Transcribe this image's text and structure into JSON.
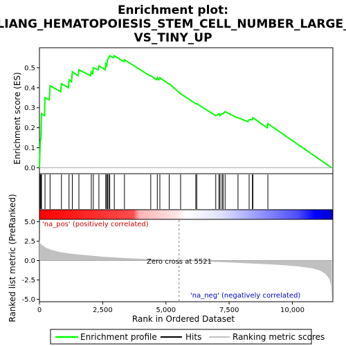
{
  "chart_data": {
    "type": "line",
    "title_line1": "Enrichment plot:",
    "title_line2": "LIANG_HEMATOPOIESIS_STEM_CELL_NUMBER_LARGE_",
    "title_line3": "VS_TINY_UP",
    "es_panel": {
      "ylabel": "Enrichment score (ES)",
      "ylim": [
        -0.03,
        0.6
      ],
      "yticks": [
        0.0,
        0.1,
        0.2,
        0.3,
        0.4,
        0.5
      ],
      "ytick_labels": [
        "0.0",
        "0.1",
        "0.2",
        "0.3",
        "0.4",
        "0.5"
      ],
      "series": [
        {
          "name": "Enrichment profile",
          "color": "#00ff00",
          "points": [
            [
              0,
              0.0
            ],
            [
              30,
              0.13
            ],
            [
              60,
              0.15
            ],
            [
              80,
              0.27
            ],
            [
              200,
              0.26
            ],
            [
              220,
              0.35
            ],
            [
              390,
              0.34
            ],
            [
              420,
              0.41
            ],
            [
              840,
              0.38
            ],
            [
              870,
              0.42
            ],
            [
              1150,
              0.4
            ],
            [
              1170,
              0.44
            ],
            [
              1270,
              0.43
            ],
            [
              1300,
              0.48
            ],
            [
              1530,
              0.46
            ],
            [
              1560,
              0.49
            ],
            [
              2020,
              0.46
            ],
            [
              2050,
              0.48
            ],
            [
              2100,
              0.47
            ],
            [
              2130,
              0.5
            ],
            [
              2320,
              0.49
            ],
            [
              2350,
              0.51
            ],
            [
              2600,
              0.49
            ],
            [
              2620,
              0.52
            ],
            [
              2660,
              0.51
            ],
            [
              2690,
              0.54
            ],
            [
              2740,
              0.55
            ],
            [
              2780,
              0.56
            ],
            [
              2940,
              0.55
            ],
            [
              2960,
              0.56
            ],
            [
              3340,
              0.53
            ],
            [
              3360,
              0.54
            ],
            [
              4360,
              0.46
            ],
            [
              4400,
              0.46
            ],
            [
              4620,
              0.44
            ],
            [
              4660,
              0.45
            ],
            [
              4720,
              0.44
            ],
            [
              4760,
              0.45
            ],
            [
              5100,
              0.42
            ],
            [
              5130,
              0.42
            ],
            [
              5580,
              0.37
            ],
            [
              6180,
              0.32
            ],
            [
              6220,
              0.32
            ],
            [
              6970,
              0.26
            ],
            [
              7100,
              0.27
            ],
            [
              7140,
              0.26
            ],
            [
              7220,
              0.27
            ],
            [
              7260,
              0.27
            ],
            [
              7340,
              0.28
            ],
            [
              7820,
              0.25
            ],
            [
              7850,
              0.25
            ],
            [
              8240,
              0.23
            ],
            [
              8290,
              0.24
            ],
            [
              8420,
              0.24
            ],
            [
              8440,
              0.25
            ],
            [
              9000,
              0.2
            ],
            [
              9030,
              0.22
            ],
            [
              11550,
              0.0
            ]
          ]
        }
      ]
    },
    "hits": [
      30,
      60,
      80,
      220,
      420,
      870,
      1170,
      1300,
      1560,
      2050,
      2130,
      2350,
      2620,
      2660,
      2690,
      2740,
      2780,
      2960,
      3360,
      4400,
      4660,
      4760,
      5130,
      5580,
      6180,
      6220,
      6970,
      7100,
      7140,
      7220,
      7260,
      7340,
      7850,
      8290,
      8420,
      8440,
      9030
    ],
    "metric_panel": {
      "ylabel": "Ranked list metric (PreRanked)",
      "ylim": [
        -5.3,
        5.3
      ],
      "yticks": [
        -5.0,
        -2.5,
        0.0,
        2.5,
        5.0
      ],
      "ytick_labels": [
        "-5.0",
        "-2.5",
        "0.0",
        "2.5",
        "5.0"
      ],
      "profile": [
        [
          0,
          2.7
        ],
        [
          30,
          2.2
        ],
        [
          100,
          2.0
        ],
        [
          250,
          1.65
        ],
        [
          500,
          1.35
        ],
        [
          800,
          1.1
        ],
        [
          1200,
          0.9
        ],
        [
          1800,
          0.7
        ],
        [
          2500,
          0.5
        ],
        [
          3500,
          0.3
        ],
        [
          4500,
          0.15
        ],
        [
          5521,
          0.0
        ],
        [
          6500,
          -0.12
        ],
        [
          7500,
          -0.25
        ],
        [
          8500,
          -0.4
        ],
        [
          9500,
          -0.55
        ],
        [
          10200,
          -0.75
        ],
        [
          10800,
          -1.0
        ],
        [
          11100,
          -1.3
        ],
        [
          11300,
          -1.7
        ],
        [
          11450,
          -2.3
        ],
        [
          11530,
          -3.2
        ],
        [
          11560,
          -5.0
        ]
      ],
      "pos_label": "'na_pos' (positively correlated)",
      "neg_label": "'na_neg' (negatively correlated)",
      "zero_cross_label": "Zero cross at 5521",
      "zero_cross": 5521
    },
    "xaxis": {
      "xlabel": "Rank in Ordered Dataset",
      "xlim": [
        0,
        11600
      ],
      "xticks": [
        0,
        2500,
        5000,
        7500,
        10000
      ],
      "xtick_labels": [
        "0",
        "2,500",
        "5,000",
        "7,500",
        "10,000"
      ]
    },
    "legend": {
      "position": "bottom",
      "items": [
        {
          "label": "Enrichment profile",
          "color": "#00ff00"
        },
        {
          "label": "Hits",
          "color": "#000000"
        },
        {
          "label": "Ranking metric scores",
          "color": "#c0c0c0"
        }
      ]
    },
    "colors": {
      "es_line": "#00ff00",
      "hit": "#000000",
      "metric_fill": "#c0c0c0",
      "pos_strong": "#ff0000",
      "neg_strong": "#0000ff",
      "zero_line": "#808080"
    }
  }
}
